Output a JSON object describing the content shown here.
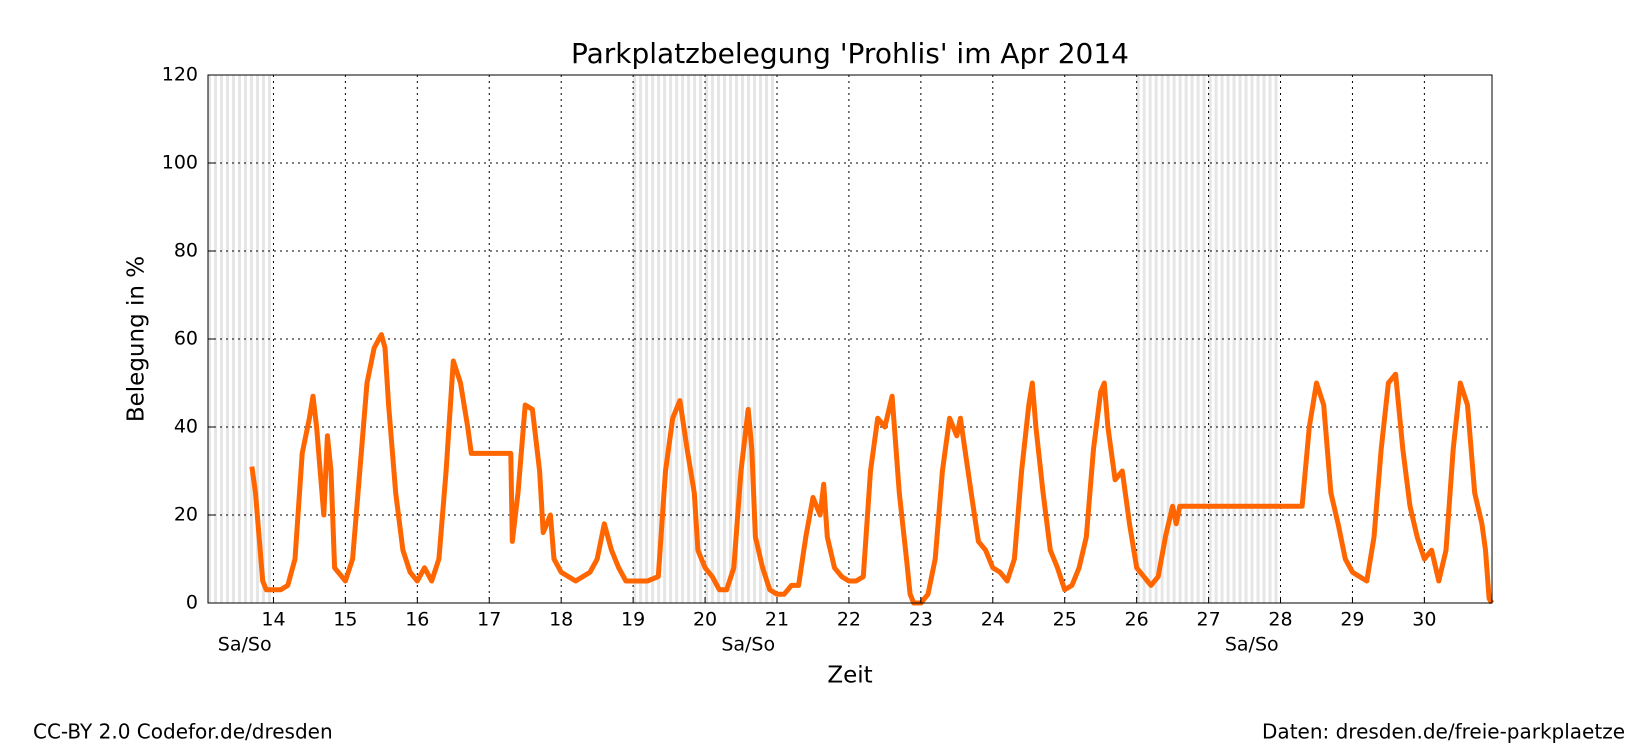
{
  "chart_data": {
    "type": "line",
    "title": "Parkplatzbelegung 'Prohlis' im Apr 2014",
    "x_label": "Zeit",
    "y_label": "Belegung in %",
    "xlim": [
      13.09,
      30.94
    ],
    "ylim": [
      0,
      120
    ],
    "xticks": [
      14,
      15,
      16,
      17,
      18,
      19,
      20,
      21,
      22,
      23,
      24,
      25,
      26,
      27,
      28,
      29,
      30
    ],
    "yticks": [
      0,
      20,
      40,
      60,
      80,
      100,
      120
    ],
    "grid": true,
    "shaded_ranges": [
      {
        "start": 13.09,
        "end": 14,
        "label": "Sa/So"
      },
      {
        "start": 19,
        "end": 21,
        "label": "Sa/So"
      },
      {
        "start": 26,
        "end": 28,
        "label": "Sa/So"
      }
    ],
    "series": [
      {
        "name": "Prohlis",
        "color": "#ff6600",
        "x": [
          13.7,
          13.75,
          13.8,
          13.85,
          13.9,
          14.0,
          14.1,
          14.2,
          14.3,
          14.35,
          14.4,
          14.45,
          14.5,
          14.55,
          14.6,
          14.65,
          14.7,
          14.75,
          14.8,
          14.85,
          14.9,
          15.0,
          15.1,
          15.2,
          15.3,
          15.4,
          15.5,
          15.55,
          15.6,
          15.7,
          15.8,
          15.9,
          16.0,
          16.1,
          16.2,
          16.3,
          16.4,
          16.5,
          16.6,
          16.7,
          16.75,
          17.3,
          17.32,
          17.4,
          17.5,
          17.6,
          17.7,
          17.75,
          17.85,
          17.9,
          18.0,
          18.1,
          18.2,
          18.3,
          18.4,
          18.5,
          18.6,
          18.7,
          18.8,
          18.9,
          19.0,
          19.2,
          19.35,
          19.45,
          19.55,
          19.65,
          19.75,
          19.85,
          19.9,
          20.0,
          20.1,
          20.2,
          20.3,
          20.4,
          20.5,
          20.6,
          20.65,
          20.7,
          20.8,
          20.9,
          21.0,
          21.1,
          21.2,
          21.3,
          21.4,
          21.5,
          21.6,
          21.65,
          21.7,
          21.8,
          21.9,
          22.0,
          22.1,
          22.2,
          22.3,
          22.4,
          22.5,
          22.6,
          22.7,
          22.8,
          22.85,
          22.9,
          23.0,
          23.1,
          23.2,
          23.3,
          23.4,
          23.5,
          23.55,
          23.7,
          23.8,
          23.9,
          24.0,
          24.1,
          24.2,
          24.3,
          24.4,
          24.5,
          24.55,
          24.6,
          24.7,
          24.8,
          24.9,
          25.0,
          25.1,
          25.2,
          25.3,
          25.4,
          25.5,
          25.55,
          25.6,
          25.7,
          25.8,
          25.9,
          26.0,
          26.1,
          26.2,
          26.3,
          26.4,
          26.5,
          26.55,
          26.6,
          26.7,
          28.3,
          28.4,
          28.5,
          28.6,
          28.7,
          28.8,
          28.9,
          29.0,
          29.1,
          29.2,
          29.3,
          29.4,
          29.5,
          29.6,
          29.7,
          29.8,
          29.9,
          30.0,
          30.1,
          30.2,
          30.3,
          30.4,
          30.5,
          30.6,
          30.7,
          30.8,
          30.85,
          30.9,
          30.94
        ],
        "values": [
          31,
          25,
          15,
          5,
          3,
          3,
          3,
          4,
          10,
          22,
          34,
          38,
          42,
          47,
          40,
          30,
          20,
          38,
          30,
          8,
          7,
          5,
          10,
          30,
          50,
          58,
          61,
          58,
          45,
          25,
          12,
          7,
          5,
          8,
          5,
          10,
          30,
          55,
          50,
          40,
          34,
          34,
          14,
          25,
          45,
          44,
          30,
          16,
          20,
          10,
          7,
          6,
          5,
          6,
          7,
          10,
          18,
          12,
          8,
          5,
          5,
          5,
          6,
          30,
          42,
          46,
          35,
          25,
          12,
          8,
          6,
          3,
          3,
          8,
          30,
          44,
          35,
          15,
          8,
          3,
          2,
          2,
          4,
          4,
          15,
          24,
          20,
          27,
          15,
          8,
          6,
          5,
          5,
          6,
          30,
          42,
          40,
          47,
          25,
          10,
          2,
          0,
          0,
          2,
          10,
          30,
          42,
          38,
          42,
          25,
          14,
          12,
          8,
          7,
          5,
          10,
          30,
          45,
          50,
          40,
          25,
          12,
          8,
          3,
          4,
          8,
          15,
          35,
          48,
          50,
          40,
          28,
          30,
          18,
          8,
          6,
          4,
          6,
          15,
          22,
          18,
          22,
          22,
          22,
          40,
          50,
          45,
          25,
          18,
          10,
          7,
          6,
          5,
          15,
          35,
          50,
          52,
          35,
          22,
          15,
          10,
          12,
          5,
          12,
          35,
          50,
          45,
          25,
          18,
          12,
          1,
          0
        ]
      }
    ],
    "footer_left": "CC-BY 2.0 Codefor.de/dresden",
    "footer_right": "Daten: dresden.de/freie-parkplaetze"
  }
}
